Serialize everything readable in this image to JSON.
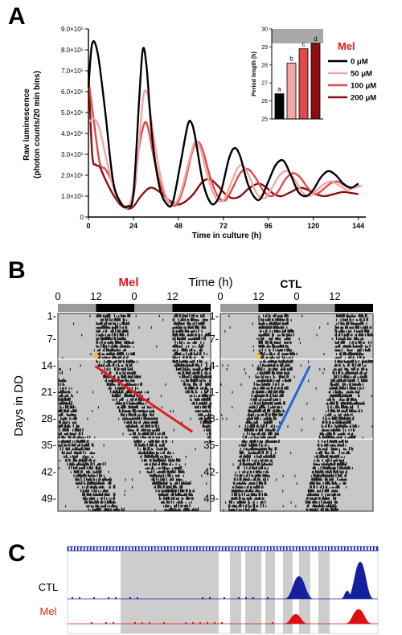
{
  "panels": {
    "a": {
      "letter": "A"
    },
    "b": {
      "letter": "B"
    },
    "c": {
      "letter": "C"
    }
  },
  "colors": {
    "c0": "#000000",
    "c50": "#f3a7a7",
    "c100": "#e24a4a",
    "c200": "#8b0f12",
    "mel_label": "#e01b1b",
    "actogram_bg": "#c8c8c8",
    "ctl_track": "#1420a0",
    "mel_track": "#e01010",
    "trend_mel": "#e0201e",
    "trend_ctl": "#2a62d8",
    "pulse": "#f2c230"
  },
  "chart_data": [
    {
      "type": "line",
      "panel": "A",
      "title": "",
      "xlabel": "Time in culture (h)",
      "ylabel_lines": [
        "Raw luminescence",
        "(photon counts/20 min bins)"
      ],
      "xlim": [
        0,
        148
      ],
      "ylim": [
        0,
        900000
      ],
      "x_ticks": [
        0,
        24,
        48,
        72,
        96,
        120,
        144
      ],
      "y_ticks": [
        {
          "value": 0,
          "label": "0"
        },
        {
          "value": 100000,
          "label": "1.0×10⁵"
        },
        {
          "value": 200000,
          "label": "2.0×10⁵"
        },
        {
          "value": 300000,
          "label": "3.0×10⁵"
        },
        {
          "value": 400000,
          "label": "4.0×10⁵"
        },
        {
          "value": 500000,
          "label": "5.0×10⁵"
        },
        {
          "value": 600000,
          "label": "6.0×10⁵"
        },
        {
          "value": 700000,
          "label": "7.0×10⁵"
        },
        {
          "value": 800000,
          "label": "8.0×10⁵"
        },
        {
          "value": 900000,
          "label": "9.0×10⁵"
        }
      ],
      "legend_title": "Mel",
      "legend_position": "right",
      "series": [
        {
          "name": "0 μM",
          "color": "#000000",
          "points": [
            [
              0,
              620000
            ],
            [
              2,
              830000
            ],
            [
              5,
              780000
            ],
            [
              9,
              500000
            ],
            [
              13,
              180000
            ],
            [
              17,
              70000
            ],
            [
              21,
              50000
            ],
            [
              24,
              110000
            ],
            [
              27,
              550000
            ],
            [
              29,
              800000
            ],
            [
              31,
              720000
            ],
            [
              34,
              380000
            ],
            [
              38,
              140000
            ],
            [
              42,
              60000
            ],
            [
              45,
              70000
            ],
            [
              49,
              250000
            ],
            [
              53,
              440000
            ],
            [
              55,
              450000
            ],
            [
              57,
              380000
            ],
            [
              61,
              170000
            ],
            [
              65,
              70000
            ],
            [
              68,
              70000
            ],
            [
              71,
              130000
            ],
            [
              75,
              280000
            ],
            [
              78,
              330000
            ],
            [
              81,
              290000
            ],
            [
              85,
              160000
            ],
            [
              89,
              90000
            ],
            [
              92,
              90000
            ],
            [
              96,
              170000
            ],
            [
              100,
              250000
            ],
            [
              104,
              270000
            ],
            [
              108,
              200000
            ],
            [
              112,
              120000
            ],
            [
              116,
              100000
            ],
            [
              120,
              130000
            ],
            [
              124,
              190000
            ],
            [
              128,
              220000
            ],
            [
              132,
              200000
            ],
            [
              136,
              160000
            ],
            [
              140,
              140000
            ],
            [
              144,
              160000
            ]
          ]
        },
        {
          "name": "50 μM",
          "color": "#f3a7a7",
          "points": [
            [
              0,
              450000
            ],
            [
              3,
              470000
            ],
            [
              6,
              420000
            ],
            [
              10,
              260000
            ],
            [
              14,
              120000
            ],
            [
              18,
              60000
            ],
            [
              22,
              60000
            ],
            [
              26,
              250000
            ],
            [
              29,
              560000
            ],
            [
              31,
              600000
            ],
            [
              33,
              500000
            ],
            [
              37,
              260000
            ],
            [
              41,
              110000
            ],
            [
              45,
              60000
            ],
            [
              49,
              110000
            ],
            [
              54,
              280000
            ],
            [
              57,
              360000
            ],
            [
              60,
              320000
            ],
            [
              64,
              180000
            ],
            [
              68,
              90000
            ],
            [
              72,
              80000
            ],
            [
              76,
              160000
            ],
            [
              80,
              240000
            ],
            [
              83,
              240000
            ],
            [
              86,
              190000
            ],
            [
              90,
              110000
            ],
            [
              94,
              90000
            ],
            [
              98,
              140000
            ],
            [
              102,
              200000
            ],
            [
              106,
              220000
            ],
            [
              110,
              180000
            ],
            [
              114,
              120000
            ],
            [
              118,
              100000
            ],
            [
              122,
              130000
            ],
            [
              126,
              160000
            ],
            [
              130,
              170000
            ],
            [
              134,
              150000
            ],
            [
              138,
              130000
            ],
            [
              142,
              140000
            ],
            [
              146,
              150000
            ]
          ]
        },
        {
          "name": "100 μM",
          "color": "#e24a4a",
          "points": [
            [
              0,
              660000
            ],
            [
              3,
              450000
            ],
            [
              6,
              260000
            ],
            [
              9,
              230000
            ],
            [
              12,
              180000
            ],
            [
              16,
              90000
            ],
            [
              20,
              50000
            ],
            [
              24,
              100000
            ],
            [
              27,
              330000
            ],
            [
              30,
              450000
            ],
            [
              32,
              420000
            ],
            [
              35,
              280000
            ],
            [
              39,
              140000
            ],
            [
              43,
              70000
            ],
            [
              47,
              60000
            ],
            [
              51,
              150000
            ],
            [
              55,
              300000
            ],
            [
              58,
              360000
            ],
            [
              61,
              320000
            ],
            [
              65,
              190000
            ],
            [
              69,
              100000
            ],
            [
              73,
              80000
            ],
            [
              77,
              140000
            ],
            [
              81,
              210000
            ],
            [
              85,
              230000
            ],
            [
              89,
              190000
            ],
            [
              93,
              130000
            ],
            [
              97,
              100000
            ],
            [
              101,
              120000
            ],
            [
              105,
              180000
            ],
            [
              109,
              210000
            ],
            [
              113,
              190000
            ],
            [
              117,
              140000
            ],
            [
              121,
              110000
            ],
            [
              125,
              130000
            ],
            [
              129,
              160000
            ],
            [
              133,
              170000
            ],
            [
              137,
              150000
            ],
            [
              141,
              140000
            ],
            [
              145,
              150000
            ]
          ]
        },
        {
          "name": "200 μM",
          "color": "#8b0f12",
          "points": [
            [
              0,
              700000
            ],
            [
              2,
              300000
            ],
            [
              4,
              250000
            ],
            [
              6,
              240000
            ],
            [
              9,
              180000
            ],
            [
              13,
              110000
            ],
            [
              17,
              60000
            ],
            [
              21,
              40000
            ],
            [
              24,
              50000
            ],
            [
              28,
              100000
            ],
            [
              33,
              140000
            ],
            [
              38,
              120000
            ],
            [
              43,
              80000
            ],
            [
              47,
              60000
            ],
            [
              51,
              70000
            ],
            [
              56,
              110000
            ],
            [
              61,
              170000
            ],
            [
              65,
              180000
            ],
            [
              69,
              150000
            ],
            [
              73,
              110000
            ],
            [
              77,
              90000
            ],
            [
              81,
              100000
            ],
            [
              86,
              140000
            ],
            [
              91,
              160000
            ],
            [
              95,
              140000
            ],
            [
              99,
              110000
            ],
            [
              103,
              100000
            ],
            [
              108,
              120000
            ],
            [
              113,
              140000
            ],
            [
              117,
              130000
            ],
            [
              121,
              110000
            ],
            [
              126,
              100000
            ],
            [
              131,
              110000
            ],
            [
              136,
              120000
            ],
            [
              140,
              115000
            ],
            [
              144,
              110000
            ]
          ]
        }
      ]
    },
    {
      "type": "bar",
      "panel": "A-inset",
      "ylabel": "Period length (h)",
      "ylim": [
        25,
        30
      ],
      "y_ticks": [
        25,
        26,
        27,
        28,
        29,
        30
      ],
      "categories": [
        "0 μM",
        "50 μM",
        "100 μM",
        "200 μM"
      ],
      "values": [
        26.4,
        28.1,
        28.9,
        29.2
      ],
      "letters": [
        "a",
        "b",
        "c",
        "d"
      ],
      "colors": [
        "#000000",
        "#f3a7a7",
        "#e24a4a",
        "#8b0f12"
      ]
    },
    {
      "type": "heatmap",
      "panel": "B",
      "axis_title": "Time (h)",
      "ylabel": "Days in DD",
      "x_ticks": [
        "0",
        "12",
        "0",
        "12"
      ],
      "y_ticks": [
        "1-",
        "7-",
        "14-",
        "21-",
        "28-",
        "35-",
        "42-",
        "49-"
      ],
      "plots": [
        {
          "label": "Mel",
          "start_phase": 12,
          "end_phase": 42,
          "start_day": 14,
          "end_day": 31,
          "drift": 0.55
        },
        {
          "label": "CTL",
          "start_phase": 28,
          "end_phase": 18,
          "start_day": 14,
          "end_day": 31,
          "drift": -0.18
        }
      ]
    },
    {
      "type": "area",
      "panel": "C",
      "tracks": [
        {
          "label": "CTL",
          "color": "#1420a0"
        },
        {
          "label": "Mel",
          "color": "#e01010"
        }
      ]
    }
  ]
}
